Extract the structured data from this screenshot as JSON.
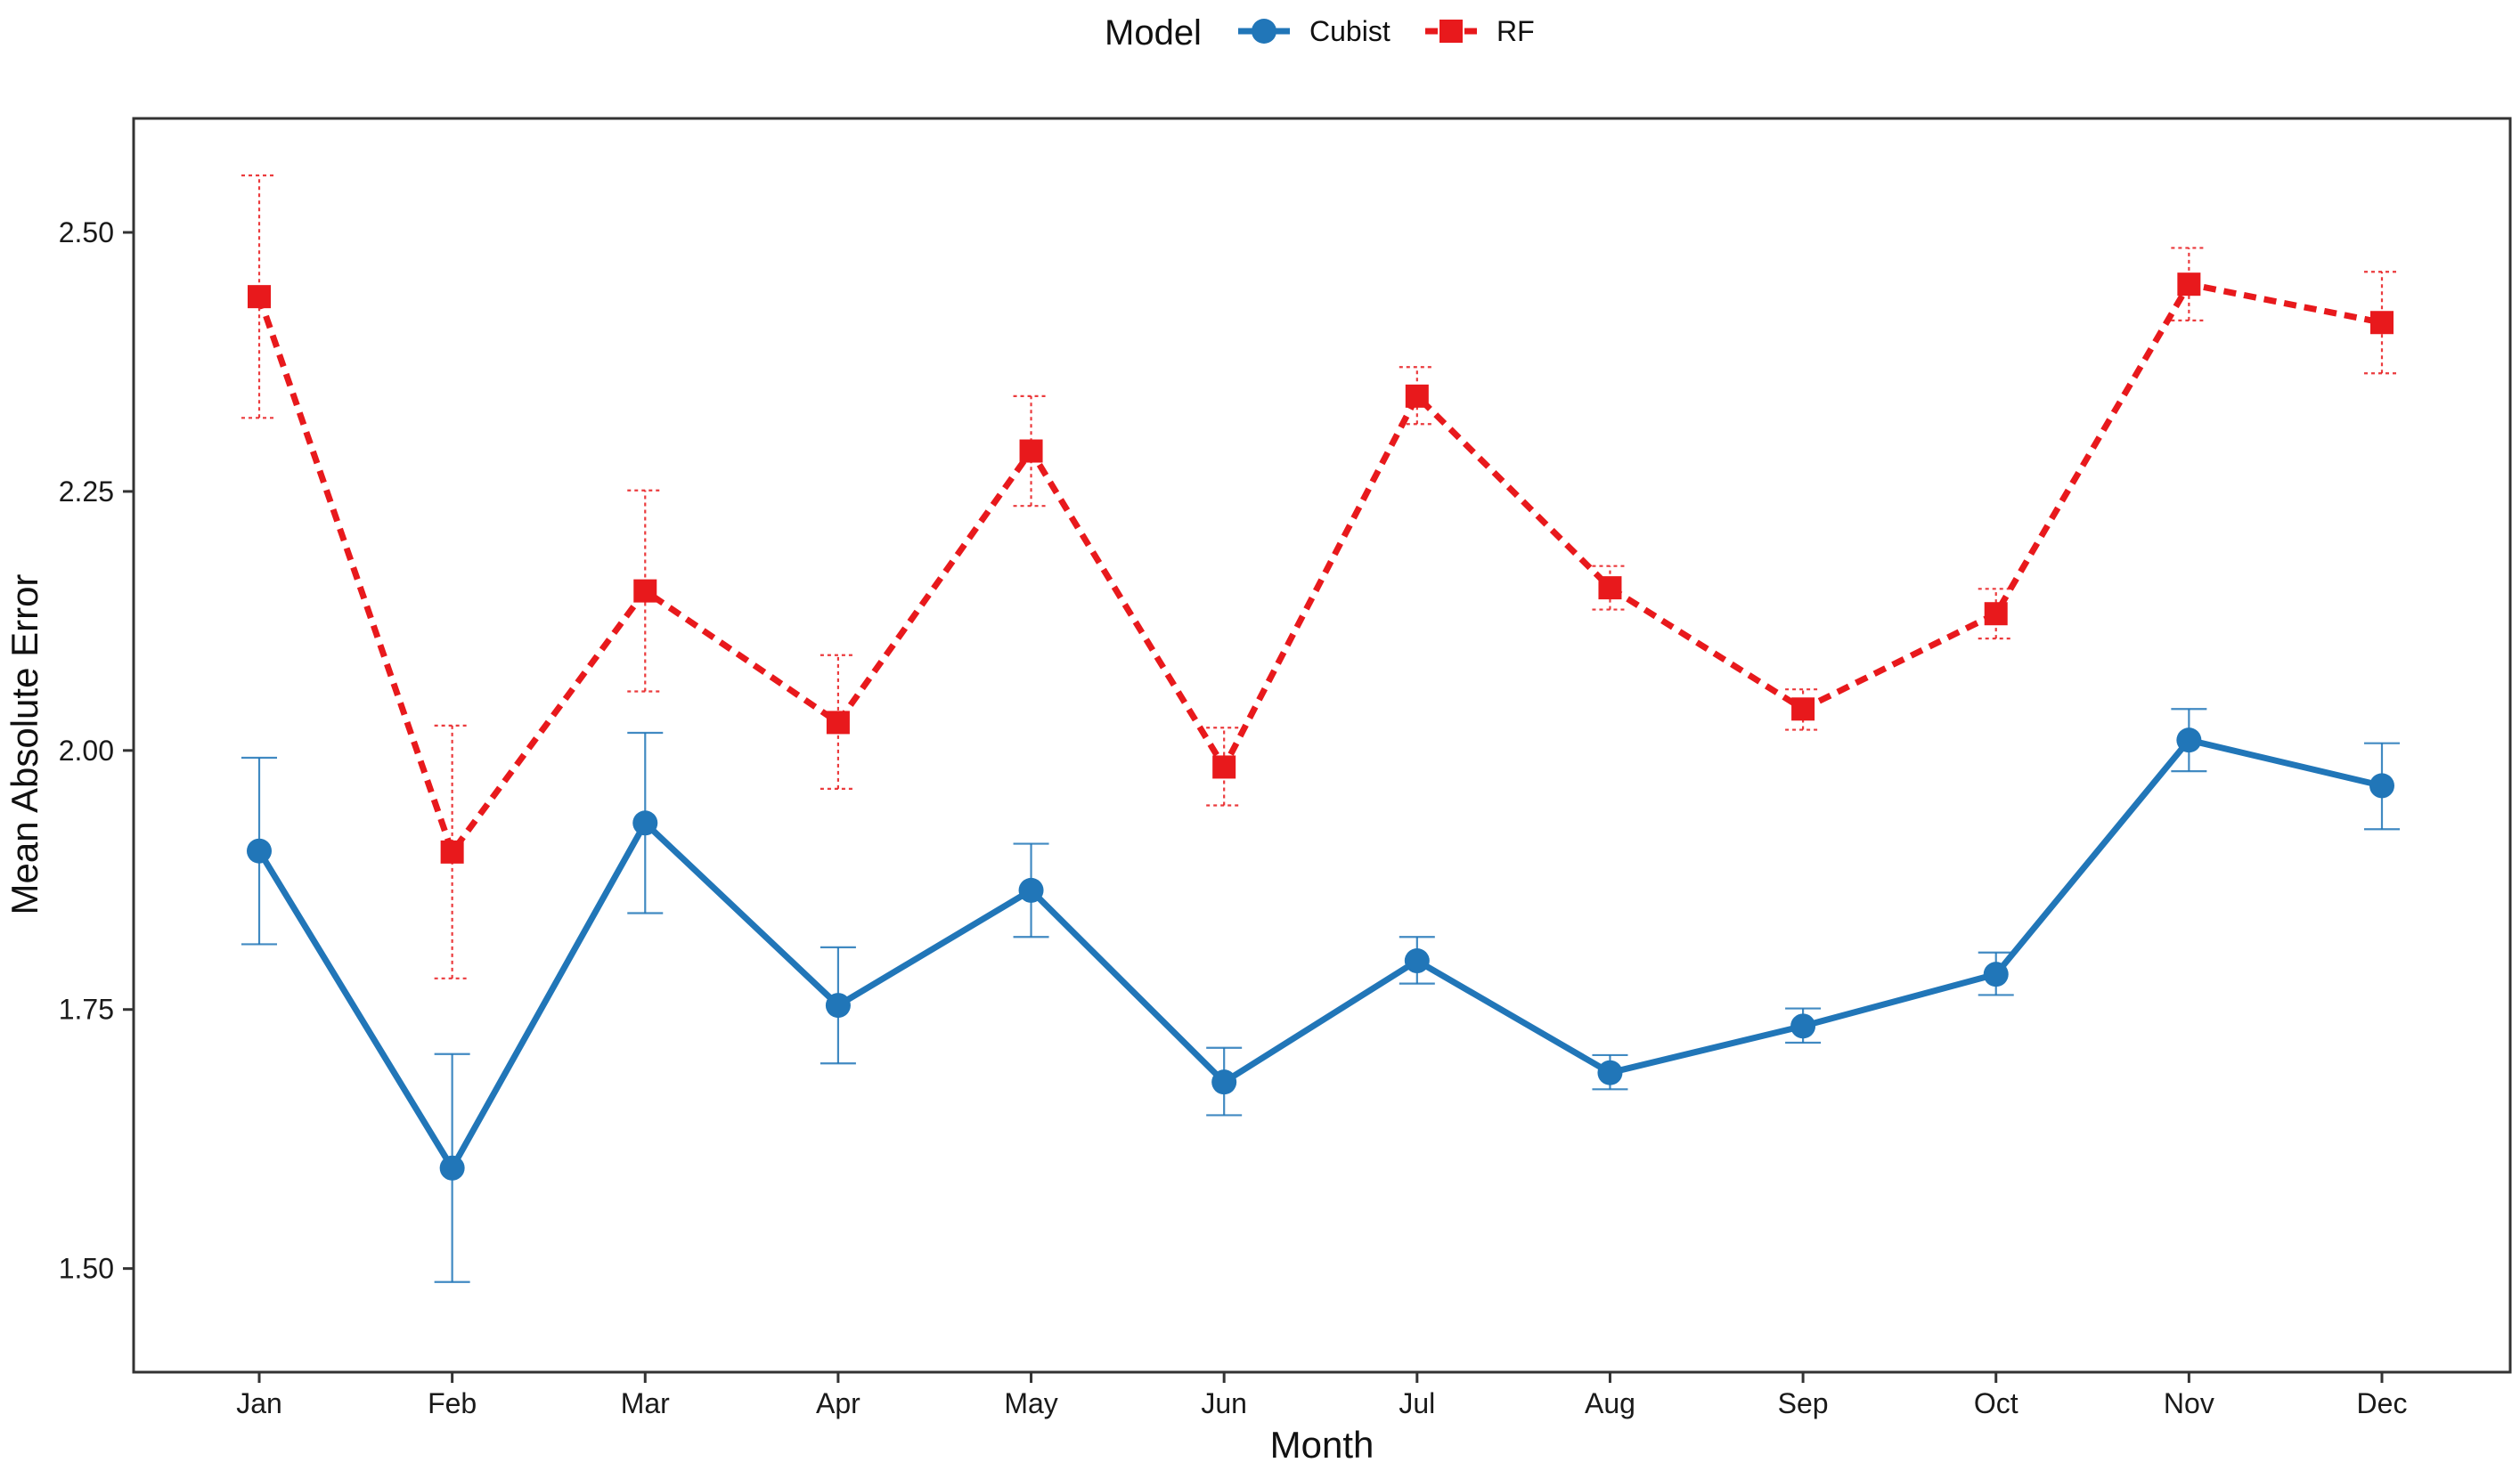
{
  "chart_data": {
    "type": "line",
    "title": "",
    "xlabel": "Month",
    "ylabel": "Mean Absolute Error",
    "categories": [
      "Jan",
      "Feb",
      "Mar",
      "Apr",
      "May",
      "Jun",
      "Jul",
      "Aug",
      "Sep",
      "Oct",
      "Nov",
      "Dec"
    ],
    "ylim": [
      1.4,
      2.61
    ],
    "yticks": [
      1.5,
      1.75,
      2.0,
      2.25,
      2.5
    ],
    "ytick_labels": [
      "1.50",
      "1.75",
      "2.00",
      "2.25",
      "2.50"
    ],
    "grid": false,
    "legend": {
      "title": "Model",
      "position": "top",
      "entries": [
        "Cubist",
        "RF"
      ]
    },
    "series": [
      {
        "name": "Cubist",
        "color": "#2176b8",
        "line_style": "solid",
        "marker": "circle",
        "values": [
          1.903,
          1.597,
          1.93,
          1.754,
          1.865,
          1.68,
          1.797,
          1.689,
          1.734,
          1.784,
          2.01,
          1.966
        ],
        "error_low": [
          1.813,
          1.487,
          1.843,
          1.698,
          1.82,
          1.648,
          1.775,
          1.673,
          1.718,
          1.764,
          1.98,
          1.924
        ],
        "error_high": [
          1.993,
          1.707,
          2.017,
          1.81,
          1.91,
          1.713,
          1.82,
          1.706,
          1.751,
          1.805,
          2.04,
          2.007
        ]
      },
      {
        "name": "RF",
        "color": "#e8191c",
        "line_style": "dashed",
        "marker": "square",
        "values": [
          2.438,
          1.902,
          2.154,
          2.027,
          2.289,
          1.984,
          2.342,
          2.157,
          2.04,
          2.132,
          2.45,
          2.413
        ],
        "error_low": [
          2.321,
          1.78,
          2.057,
          1.963,
          2.236,
          1.947,
          2.315,
          2.136,
          2.02,
          2.108,
          2.415,
          2.364
        ],
        "error_high": [
          2.555,
          2.024,
          2.251,
          2.092,
          2.342,
          2.022,
          2.37,
          2.178,
          2.059,
          2.156,
          2.485,
          2.462
        ]
      }
    ]
  }
}
